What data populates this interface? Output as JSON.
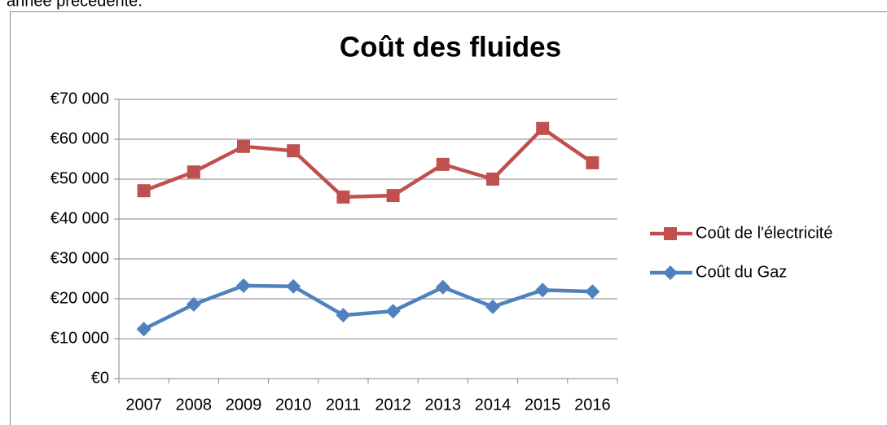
{
  "caption": "année précédente.",
  "chart_data": {
    "type": "line",
    "title": "Coût des fluides",
    "categories": [
      "2007",
      "2008",
      "2009",
      "2010",
      "2011",
      "2012",
      "2013",
      "2014",
      "2015",
      "2016"
    ],
    "series": [
      {
        "name": "Coût de l'électricité",
        "color": "#c0504d",
        "marker": "square",
        "values": [
          47100,
          51800,
          58200,
          57100,
          45500,
          45900,
          53700,
          50000,
          62700,
          54100
        ]
      },
      {
        "name": "Coût du Gaz",
        "color": "#4f81bd",
        "marker": "diamond",
        "values": [
          12400,
          18600,
          23300,
          23100,
          15900,
          16900,
          22900,
          18000,
          22200,
          21800
        ]
      }
    ],
    "ylim": [
      0,
      70000
    ],
    "yticks": [
      {
        "value": 0,
        "label": "€0"
      },
      {
        "value": 10000,
        "label": "€10 000"
      },
      {
        "value": 20000,
        "label": "€20 000"
      },
      {
        "value": 30000,
        "label": "€30 000"
      },
      {
        "value": 40000,
        "label": "€40 000"
      },
      {
        "value": 50000,
        "label": "€50 000"
      },
      {
        "value": 60000,
        "label": "€60 000"
      },
      {
        "value": 70000,
        "label": "€70 000"
      }
    ],
    "grid": true,
    "legend": "right"
  }
}
